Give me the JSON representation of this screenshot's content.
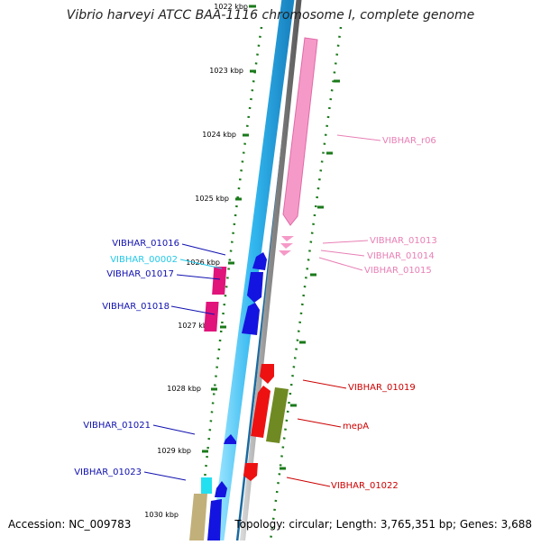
{
  "title": "Vibrio harveyi ATCC BAA-1116 chromosome I, complete genome",
  "accession": "Accession: NC_009783",
  "summary": "Topology: circular; Length: 3,765,351 bp; Genes: 3,688",
  "ruler": [
    {
      "label": "1022 kbp"
    },
    {
      "label": "1023 kbp"
    },
    {
      "label": "1024 kbp"
    },
    {
      "label": "1025 kbp"
    },
    {
      "label": "1026 kbp"
    },
    {
      "label": "1027 kbp"
    },
    {
      "label": "1028 kbp"
    },
    {
      "label": "1029 kbp"
    },
    {
      "label": "1030 kbp"
    }
  ],
  "gene_labels": [
    {
      "text": "VIBHAR_r06",
      "color": "#e87fb5"
    },
    {
      "text": "VIBHAR_01013",
      "color": "#e87fb5"
    },
    {
      "text": "VIBHAR_01014",
      "color": "#e87fb5"
    },
    {
      "text": "VIBHAR_01015",
      "color": "#e87fb5"
    },
    {
      "text": "VIBHAR_01016",
      "color": "#1010b0"
    },
    {
      "text": "VIBHAR_00002",
      "color": "#22c8e8"
    },
    {
      "text": "VIBHAR_01017",
      "color": "#1010b0"
    },
    {
      "text": "VIBHAR_01018",
      "color": "#1010b0"
    },
    {
      "text": "VIBHAR_01019",
      "color": "#cc0000"
    },
    {
      "text": "mepA",
      "color": "#cc0000"
    },
    {
      "text": "VIBHAR_01021",
      "color": "#1010b0"
    },
    {
      "text": "VIBHAR_01023",
      "color": "#1010b0"
    },
    {
      "text": "VIBHAR_01022",
      "color": "#cc0000"
    }
  ],
  "colors": {
    "backbone_cyan": "#33b8f0",
    "backbone_gray": "#888888",
    "tick_green": "#1a7a1a",
    "cds_blue": "#1414e0",
    "trna_magenta": "#e0147a",
    "rrna_pink": "#f59ac8",
    "cds_red": "#ee1111",
    "olive": "#6f8a22",
    "tan": "#c2b07a",
    "cyan_misc": "#22e0f0"
  }
}
